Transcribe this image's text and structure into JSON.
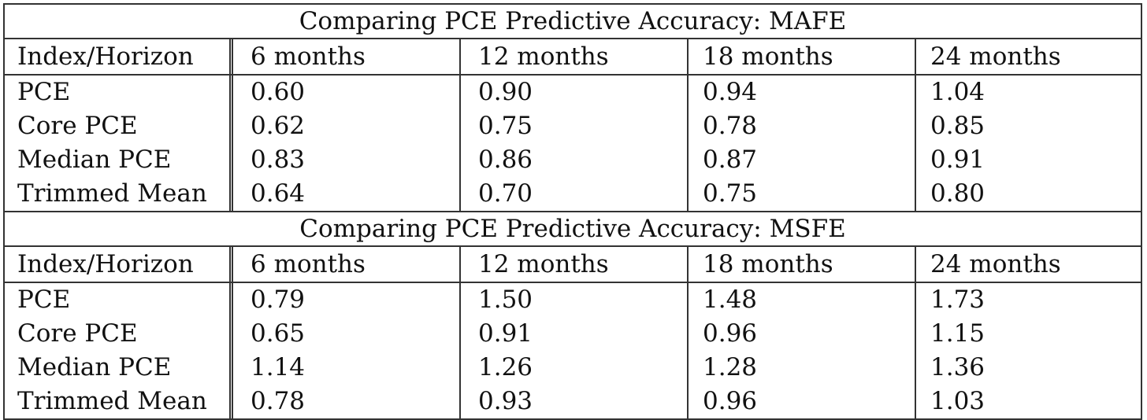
{
  "sections": [
    {
      "title": "Comparing PCE Predictive Accuracy: MAFE",
      "header": [
        "Index/Horizon",
        "6 months",
        "12 months",
        "18 months",
        "24 months"
      ],
      "rows": [
        [
          "PCE",
          "0.60",
          "0.90",
          "0.94",
          "1.04"
        ],
        [
          "Core PCE",
          "0.62",
          "0.75",
          "0.78",
          "0.85"
        ],
        [
          "Median PCE",
          "0.83",
          "0.86",
          "0.87",
          "0.91"
        ],
        [
          "Trimmed Mean",
          "0.64",
          "0.70",
          "0.75",
          "0.80"
        ]
      ]
    },
    {
      "title": "Comparing PCE Predictive Accuracy: MSFE",
      "header": [
        "Index/Horizon",
        "6 months",
        "12 months",
        "18 months",
        "24 months"
      ],
      "rows": [
        [
          "PCE",
          "0.79",
          "1.50",
          "1.48",
          "1.73"
        ],
        [
          "Core PCE",
          "0.65",
          "0.91",
          "0.96",
          "1.15"
        ],
        [
          "Median PCE",
          "1.14",
          "1.26",
          "1.28",
          "1.36"
        ],
        [
          "Trimmed Mean",
          "0.78",
          "0.93",
          "0.96",
          "1.03"
        ]
      ]
    }
  ]
}
